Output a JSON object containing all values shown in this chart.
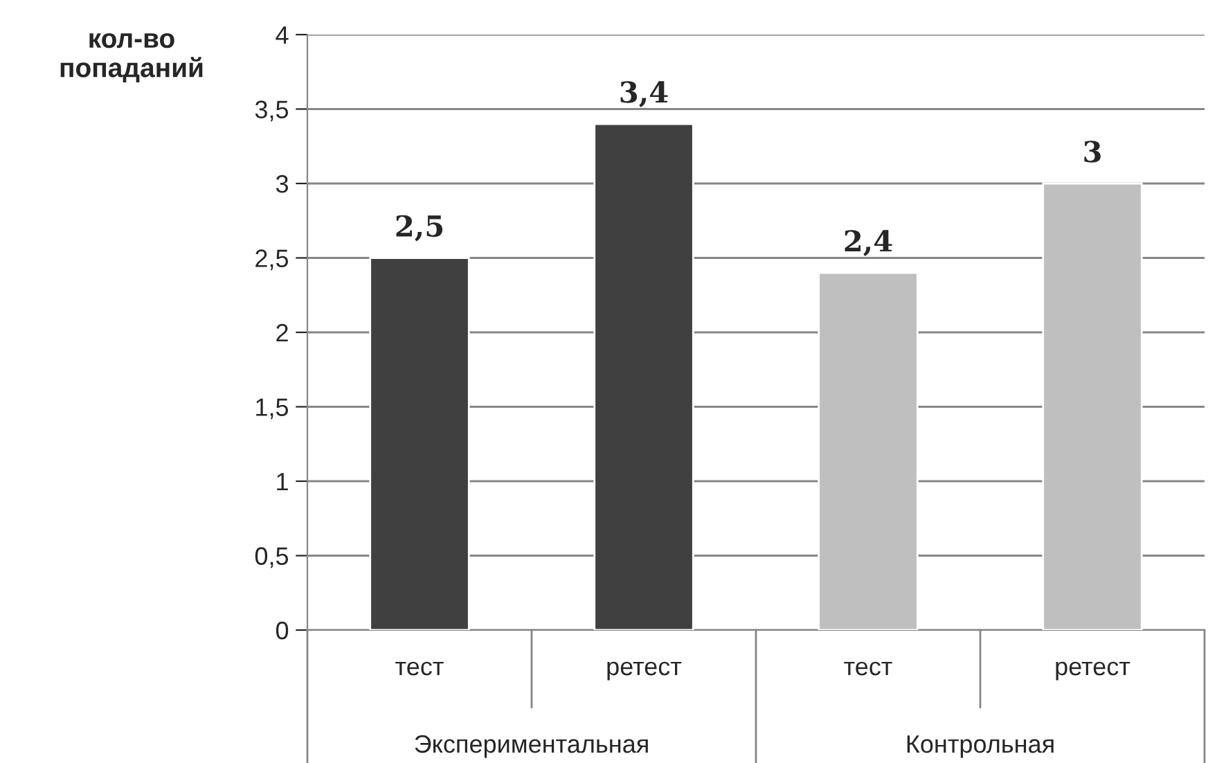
{
  "chart_data": {
    "type": "bar",
    "ylabel": "кол-во попаданий",
    "categories": [
      "тест",
      "ретест",
      "тест",
      "ретест"
    ],
    "values": [
      2.5,
      3.4,
      2.4,
      3
    ],
    "colors": [
      "#404040",
      "#404040",
      "#bfbfbf",
      "#bfbfbf"
    ],
    "value_labels": [
      "2,5",
      "3,4",
      "2,4",
      "3"
    ],
    "annotations": [
      "Экспериментальная",
      "Контрольная"
    ],
    "ylim": [
      0,
      4
    ],
    "yticks": [
      0,
      {
        "value": 0.5,
        "label": "0,5"
      },
      1,
      {
        "value": 1.5,
        "label": "1,5"
      },
      2,
      {
        "value": 2.5,
        "label": "2,5"
      },
      3,
      {
        "value": 3.5,
        "label": "3,5"
      },
      4
    ],
    "grid": "y",
    "legend": false
  }
}
